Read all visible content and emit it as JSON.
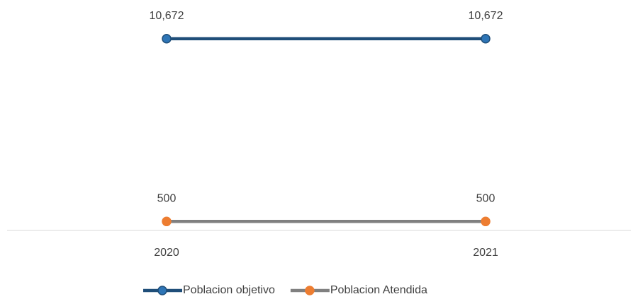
{
  "chart_data": {
    "type": "line",
    "categories": [
      "2020",
      "2021"
    ],
    "series": [
      {
        "name": "Poblacion objetivo",
        "color": "#1f4e79",
        "marker_color": "#2e75b6",
        "values": [
          10672,
          10672
        ],
        "value_labels": [
          "10,672",
          "10,672"
        ]
      },
      {
        "name": "Poblacion Atendida",
        "color": "#808080",
        "marker_color": "#ed7d31",
        "values": [
          500,
          500
        ]
      }
    ],
    "ylim": [
      0,
      12000
    ],
    "legend": "bottom"
  }
}
